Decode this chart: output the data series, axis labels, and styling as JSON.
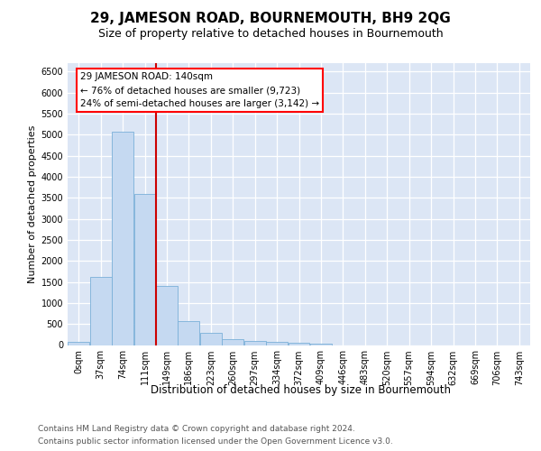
{
  "title": "29, JAMESON ROAD, BOURNEMOUTH, BH9 2QG",
  "subtitle": "Size of property relative to detached houses in Bournemouth",
  "xlabel": "Distribution of detached houses by size in Bournemouth",
  "ylabel": "Number of detached properties",
  "footer1": "Contains HM Land Registry data © Crown copyright and database right 2024.",
  "footer2": "Contains public sector information licensed under the Open Government Licence v3.0.",
  "bar_labels": [
    "0sqm",
    "37sqm",
    "74sqm",
    "111sqm",
    "149sqm",
    "186sqm",
    "223sqm",
    "260sqm",
    "297sqm",
    "334sqm",
    "372sqm",
    "409sqm",
    "446sqm",
    "483sqm",
    "520sqm",
    "557sqm",
    "594sqm",
    "632sqm",
    "669sqm",
    "706sqm",
    "743sqm"
  ],
  "bar_values": [
    75,
    1625,
    5075,
    3600,
    1400,
    575,
    285,
    145,
    100,
    75,
    60,
    35,
    0,
    0,
    0,
    0,
    0,
    0,
    0,
    0,
    0
  ],
  "bar_color": "#c5d9f1",
  "bar_edge_color": "#7ab0d8",
  "vline_pos": 3.5,
  "vline_color": "#cc0000",
  "annotation_text": "29 JAMESON ROAD: 140sqm\n← 76% of detached houses are smaller (9,723)\n24% of semi-detached houses are larger (3,142) →",
  "ylim": [
    0,
    6700
  ],
  "yticks": [
    0,
    500,
    1000,
    1500,
    2000,
    2500,
    3000,
    3500,
    4000,
    4500,
    5000,
    5500,
    6000,
    6500
  ],
  "bg_color": "#dce6f5",
  "title_fontsize": 11,
  "subtitle_fontsize": 9,
  "ylabel_fontsize": 8,
  "xlabel_fontsize": 8.5,
  "tick_fontsize": 7,
  "footer_fontsize": 6.5,
  "annot_fontsize": 7.5
}
